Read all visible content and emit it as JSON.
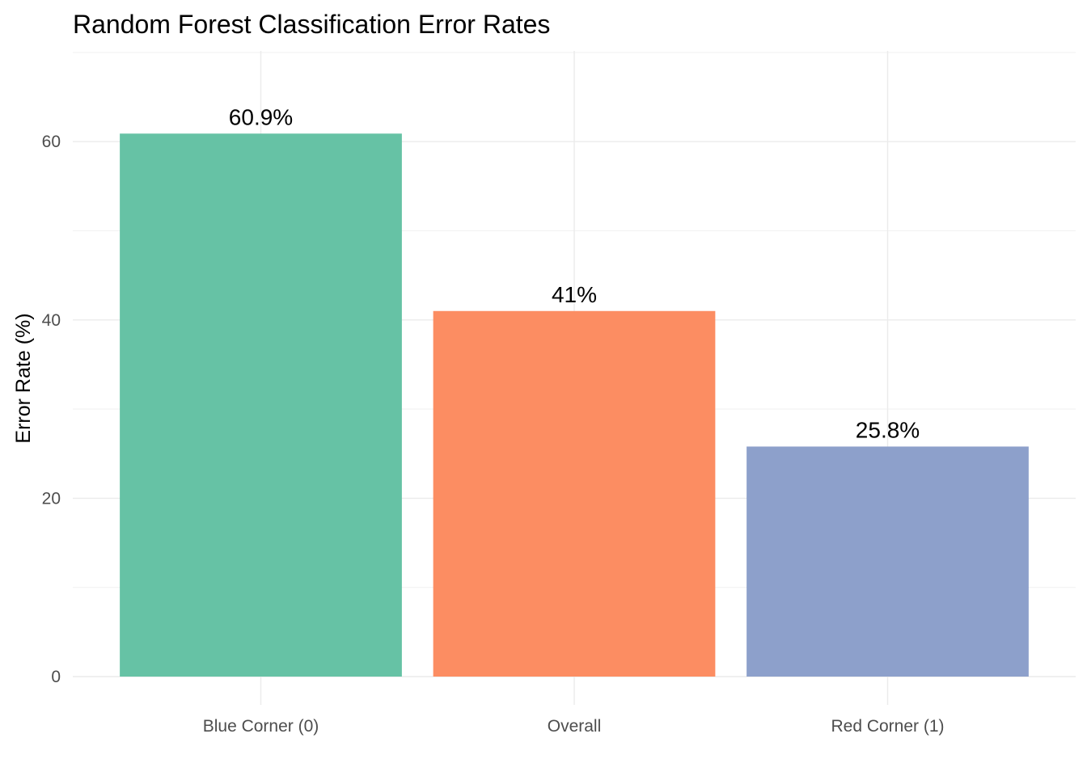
{
  "chart_data": {
    "type": "bar",
    "title": "Random Forest Classification Error Rates",
    "xlabel": "",
    "ylabel": "Error Rate (%)",
    "categories": [
      "Blue Corner (0)",
      "Overall",
      "Red Corner (1)"
    ],
    "values": [
      60.9,
      41,
      25.8
    ],
    "data_labels": [
      "60.9%",
      "41%",
      "25.8%"
    ],
    "colors": [
      "#66c2a5",
      "#fc8d62",
      "#8da0cb"
    ],
    "ylim": [
      0,
      70
    ],
    "y_ticks": [
      0,
      20,
      40,
      60
    ],
    "y_tick_labels": [
      "0",
      "20",
      "40",
      "60"
    ],
    "grid": true,
    "legend": "none"
  }
}
